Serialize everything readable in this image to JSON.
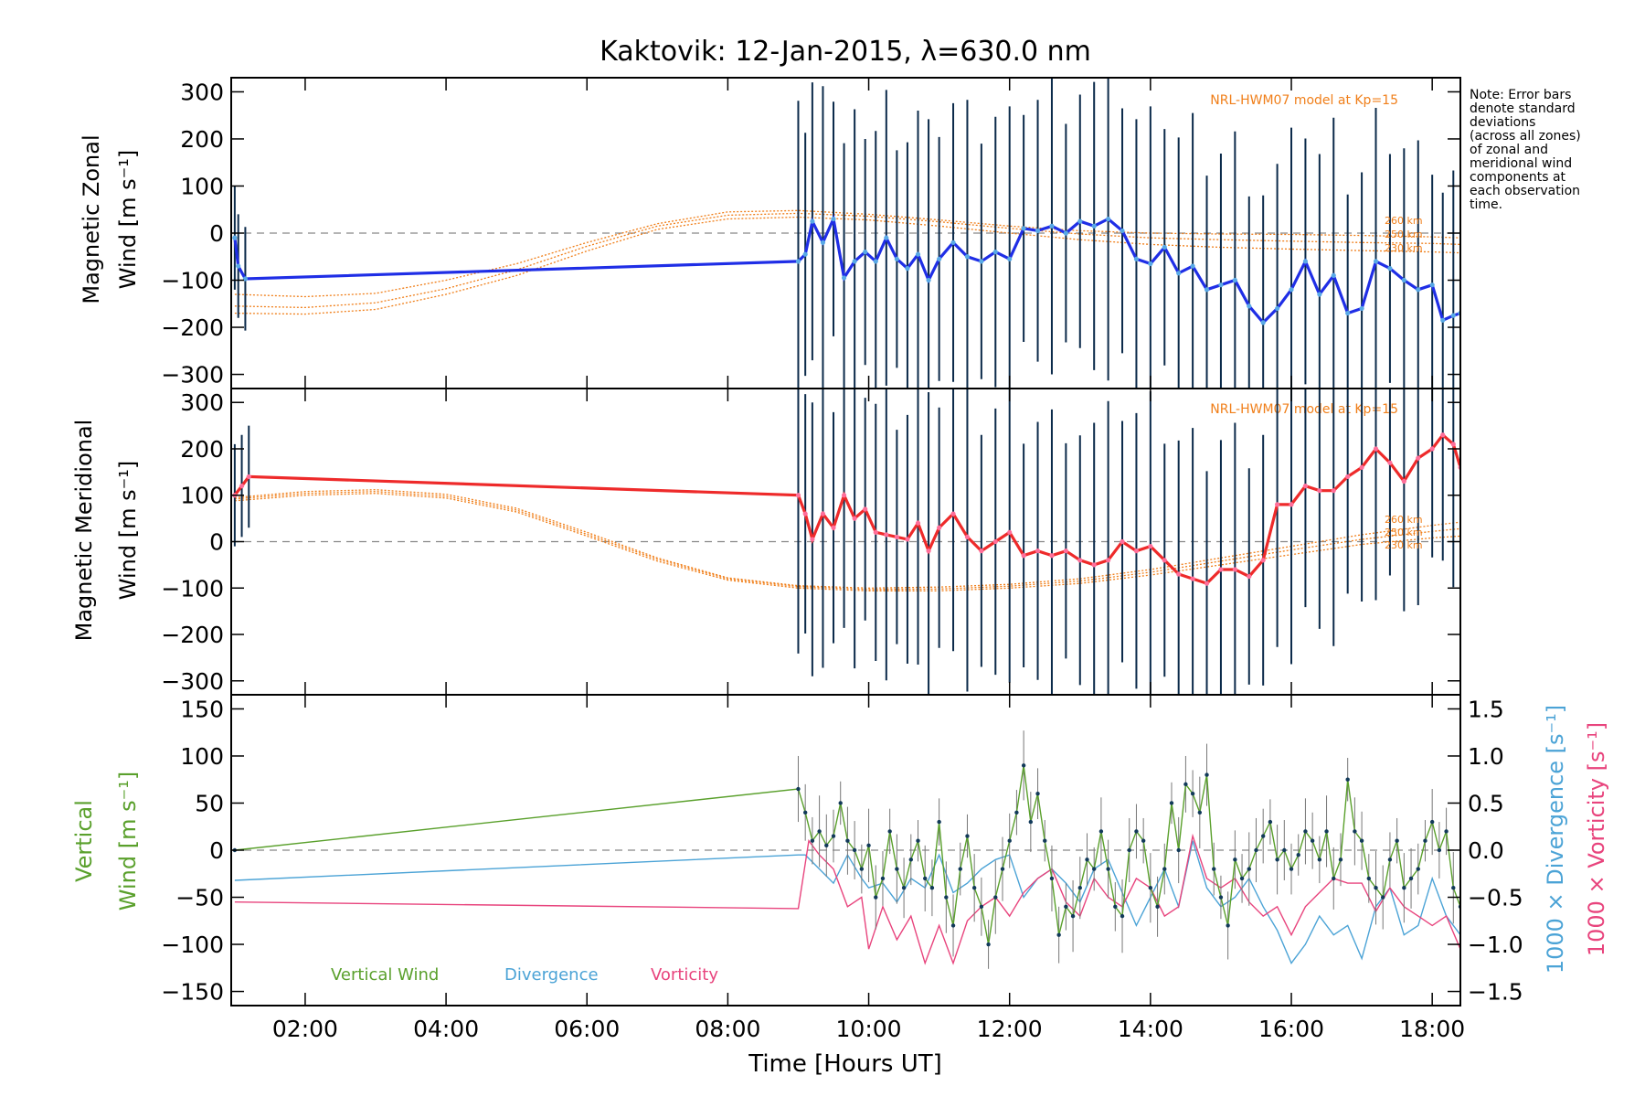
{
  "title": "Kaktovik: 12-Jan-2015, λ=630.0 nm",
  "note": [
    "Note: Error bars",
    "denote standard",
    "deviations",
    "(across all zones)",
    "of zonal and",
    "meridional wind",
    "components at",
    "each observation",
    "time."
  ],
  "model_label": "NRL-HWM07 model at Kp=15",
  "altitude_labels": [
    "260 km",
    "250 km",
    "230 km"
  ],
  "xlabel": "Time [Hours UT]",
  "x_ticks": [
    "02:00",
    "04:00",
    "06:00",
    "08:00",
    "10:00",
    "12:00",
    "14:00",
    "16:00",
    "18:00"
  ],
  "colors": {
    "zonal": "#1f2ee6",
    "meridional": "#ee2a2a",
    "vertical": "#5aa02c",
    "divergence": "#4ba3d6",
    "vorticity": "#e8447d",
    "model": "#f07f1a",
    "errorbar": "#0b2a4a"
  },
  "chart_data": [
    {
      "type": "line",
      "ylabel": "Magnetic Zonal Wind [m s⁻¹]",
      "ylabel_lines": [
        "Magnetic Zonal",
        "Wind [m s⁻¹]"
      ],
      "xlim": [
        0.95,
        18.4
      ],
      "ylim": [
        -330,
        330
      ],
      "y_ticks": [
        "300",
        "200",
        "100",
        "0",
        "−100",
        "−200",
        "−300"
      ],
      "series": [
        {
          "role": "observed",
          "x": [
            1.0,
            1.05,
            1.15,
            9.0,
            9.1,
            9.2,
            9.35,
            9.5,
            9.65,
            9.8,
            9.95,
            10.1,
            10.25,
            10.4,
            10.55,
            10.7,
            10.85,
            11.0,
            11.2,
            11.4,
            11.6,
            11.8,
            12.0,
            12.2,
            12.4,
            12.6,
            12.8,
            13.0,
            13.2,
            13.4,
            13.6,
            13.8,
            14.0,
            14.2,
            14.4,
            14.6,
            14.8,
            15.0,
            15.2,
            15.4,
            15.6,
            15.8,
            16.0,
            16.2,
            16.4,
            16.6,
            16.8,
            17.0,
            17.2,
            17.4,
            17.6,
            17.8,
            18.0,
            18.15,
            18.3,
            18.4
          ],
          "values": [
            -10,
            -70,
            -97,
            -60,
            -45,
            25,
            -20,
            30,
            -95,
            -60,
            -40,
            -60,
            -10,
            -55,
            -75,
            -45,
            -100,
            -55,
            -20,
            -50,
            -60,
            -40,
            -55,
            10,
            5,
            15,
            0,
            25,
            15,
            30,
            5,
            -55,
            -65,
            -30,
            -85,
            -70,
            -120,
            -110,
            -100,
            -155,
            -190,
            -160,
            -120,
            -60,
            -130,
            -90,
            -170,
            -160,
            -60,
            -75,
            -100,
            -120,
            -110,
            -185,
            -175,
            -170
          ]
        }
      ],
      "model_curves": [
        {
          "name": "260 km",
          "x": [
            1.0,
            2.0,
            3.0,
            4.0,
            5.0,
            6.0,
            7.0,
            8.0,
            9.0,
            10.0,
            11.0,
            12.0,
            13.0,
            14.0,
            15.0,
            16.0,
            17.0,
            18.0,
            18.4
          ],
          "values": [
            -130,
            -135,
            -128,
            -100,
            -65,
            -20,
            20,
            45,
            48,
            40,
            28,
            15,
            5,
            0,
            -2,
            -3,
            -5,
            -8,
            -10
          ]
        },
        {
          "name": "250 km",
          "x": [
            1.0,
            2.0,
            3.0,
            4.0,
            5.0,
            6.0,
            7.0,
            8.0,
            9.0,
            10.0,
            11.0,
            12.0,
            13.0,
            14.0,
            15.0,
            16.0,
            17.0,
            18.0,
            18.4
          ],
          "values": [
            -155,
            -158,
            -148,
            -118,
            -78,
            -28,
            15,
            38,
            42,
            36,
            24,
            10,
            -2,
            -10,
            -14,
            -17,
            -20,
            -22,
            -24
          ]
        },
        {
          "name": "230 km",
          "x": [
            1.0,
            2.0,
            3.0,
            4.0,
            5.0,
            6.0,
            7.0,
            8.0,
            9.0,
            10.0,
            11.0,
            12.0,
            13.0,
            14.0,
            15.0,
            16.0,
            17.0,
            18.0,
            18.4
          ],
          "values": [
            -170,
            -172,
            -162,
            -130,
            -90,
            -38,
            8,
            30,
            34,
            28,
            15,
            0,
            -14,
            -24,
            -30,
            -34,
            -37,
            -40,
            -42
          ]
        }
      ]
    },
    {
      "type": "line",
      "ylabel": "Magnetic Meridional Wind [m s⁻¹]",
      "ylabel_lines": [
        "Magnetic Meridional",
        "Wind [m s⁻¹]"
      ],
      "xlim": [
        0.95,
        18.4
      ],
      "ylim": [
        -330,
        330
      ],
      "y_ticks": [
        "300",
        "200",
        "100",
        "0",
        "−100",
        "−200",
        "−300"
      ],
      "series": [
        {
          "role": "observed",
          "x": [
            1.0,
            1.1,
            1.2,
            9.0,
            9.1,
            9.2,
            9.35,
            9.5,
            9.65,
            9.8,
            9.95,
            10.1,
            10.25,
            10.4,
            10.55,
            10.7,
            10.85,
            11.0,
            11.2,
            11.4,
            11.6,
            11.8,
            12.0,
            12.2,
            12.4,
            12.6,
            12.8,
            13.0,
            13.2,
            13.4,
            13.6,
            13.8,
            14.0,
            14.2,
            14.4,
            14.6,
            14.8,
            15.0,
            15.2,
            15.4,
            15.6,
            15.8,
            16.0,
            16.2,
            16.4,
            16.6,
            16.8,
            17.0,
            17.2,
            17.4,
            17.6,
            17.8,
            18.0,
            18.15,
            18.3,
            18.4
          ],
          "values": [
            100,
            120,
            140,
            100,
            60,
            5,
            60,
            30,
            100,
            50,
            70,
            20,
            15,
            10,
            5,
            40,
            -20,
            30,
            60,
            10,
            -20,
            0,
            20,
            -30,
            -20,
            -30,
            -20,
            -40,
            -50,
            -40,
            0,
            -20,
            -10,
            -40,
            -70,
            -80,
            -90,
            -60,
            -60,
            -75,
            -40,
            80,
            80,
            120,
            110,
            110,
            140,
            160,
            200,
            170,
            130,
            180,
            200,
            230,
            210,
            160
          ]
        }
      ],
      "model_curves": [
        {
          "name": "260 km",
          "x": [
            1.0,
            2.0,
            3.0,
            4.0,
            5.0,
            6.0,
            7.0,
            8.0,
            9.0,
            10.0,
            11.0,
            12.0,
            13.0,
            14.0,
            15.0,
            16.0,
            17.0,
            18.0,
            18.4
          ],
          "values": [
            95,
            108,
            112,
            102,
            72,
            20,
            -35,
            -78,
            -95,
            -100,
            -98,
            -92,
            -80,
            -60,
            -35,
            -10,
            15,
            35,
            42
          ]
        },
        {
          "name": "250 km",
          "x": [
            1.0,
            2.0,
            3.0,
            4.0,
            5.0,
            6.0,
            7.0,
            8.0,
            9.0,
            10.0,
            11.0,
            12.0,
            13.0,
            14.0,
            15.0,
            16.0,
            17.0,
            18.0,
            18.4
          ],
          "values": [
            92,
            104,
            108,
            98,
            68,
            16,
            -38,
            -80,
            -97,
            -103,
            -102,
            -96,
            -85,
            -66,
            -42,
            -18,
            5,
            22,
            28
          ]
        },
        {
          "name": "230 km",
          "x": [
            1.0,
            2.0,
            3.0,
            4.0,
            5.0,
            6.0,
            7.0,
            8.0,
            9.0,
            10.0,
            11.0,
            12.0,
            13.0,
            14.0,
            15.0,
            16.0,
            17.0,
            18.0,
            18.4
          ],
          "values": [
            88,
            100,
            104,
            94,
            64,
            12,
            -42,
            -83,
            -100,
            -106,
            -106,
            -100,
            -90,
            -72,
            -50,
            -28,
            -6,
            8,
            12
          ]
        }
      ]
    },
    {
      "type": "line",
      "ylabel": "Vertical Wind [m s⁻¹]",
      "ylabel_lines": [
        "Vertical",
        "Wind [m s⁻¹]"
      ],
      "right_axis_labels": [
        "1000 × Divergence [s⁻¹]",
        "1000 × Vorticity [s⁻¹]"
      ],
      "xlim": [
        0.95,
        18.4
      ],
      "ylim": [
        -165,
        165
      ],
      "y_ticks": [
        "150",
        "100",
        "50",
        "0",
        "−50",
        "−100",
        "−150"
      ],
      "y2lim": [
        -1.65,
        1.65
      ],
      "y2_ticks": [
        "1.5",
        "1.0",
        "0.5",
        "0.0",
        "−0.5",
        "−1.0",
        "−1.5"
      ],
      "legend": [
        "Vertical Wind",
        "Divergence",
        "Vorticity"
      ],
      "series": [
        {
          "name": "Vertical Wind",
          "x": [
            1.0,
            9.0,
            9.1,
            9.2,
            9.3,
            9.4,
            9.5,
            9.6,
            9.7,
            9.8,
            9.9,
            10.0,
            10.1,
            10.2,
            10.3,
            10.4,
            10.5,
            10.6,
            10.7,
            10.8,
            10.9,
            11.0,
            11.1,
            11.2,
            11.3,
            11.4,
            11.5,
            11.6,
            11.7,
            11.8,
            11.9,
            12.0,
            12.1,
            12.2,
            12.3,
            12.4,
            12.5,
            12.6,
            12.7,
            12.8,
            12.9,
            13.0,
            13.1,
            13.2,
            13.3,
            13.4,
            13.5,
            13.6,
            13.7,
            13.8,
            13.9,
            14.0,
            14.1,
            14.2,
            14.3,
            14.4,
            14.5,
            14.6,
            14.7,
            14.8,
            14.9,
            15.0,
            15.1,
            15.2,
            15.3,
            15.4,
            15.5,
            15.6,
            15.7,
            15.8,
            15.9,
            16.0,
            16.1,
            16.2,
            16.3,
            16.4,
            16.5,
            16.6,
            16.7,
            16.8,
            16.9,
            17.0,
            17.1,
            17.2,
            17.3,
            17.4,
            17.5,
            17.6,
            17.7,
            17.8,
            17.9,
            18.0,
            18.1,
            18.2,
            18.3,
            18.4
          ],
          "values": [
            0,
            65,
            40,
            10,
            20,
            5,
            15,
            50,
            10,
            0,
            -20,
            5,
            -50,
            -30,
            20,
            -20,
            -40,
            -10,
            10,
            -30,
            -40,
            30,
            -50,
            -80,
            -20,
            15,
            -40,
            -60,
            -100,
            -50,
            -20,
            10,
            40,
            90,
            30,
            60,
            10,
            -30,
            -90,
            -60,
            -70,
            -40,
            -10,
            -20,
            20,
            -20,
            -60,
            -70,
            0,
            20,
            10,
            -40,
            -60,
            -20,
            50,
            0,
            70,
            60,
            40,
            80,
            -20,
            -50,
            -80,
            -10,
            -30,
            -20,
            0,
            15,
            30,
            -10,
            0,
            -20,
            -5,
            20,
            10,
            -10,
            20,
            -30,
            -10,
            75,
            20,
            10,
            -30,
            -40,
            -50,
            -10,
            10,
            -40,
            -30,
            -20,
            10,
            30,
            0,
            20,
            -40,
            -60
          ]
        },
        {
          "name": "Divergence",
          "x": [
            1.0,
            9.0,
            9.1,
            9.3,
            9.5,
            9.7,
            9.9,
            10.0,
            10.2,
            10.4,
            10.6,
            10.8,
            11.0,
            11.2,
            11.4,
            11.6,
            11.8,
            12.0,
            12.2,
            12.4,
            12.6,
            12.8,
            13.0,
            13.2,
            13.4,
            13.6,
            13.8,
            14.0,
            14.2,
            14.4,
            14.6,
            14.8,
            15.0,
            15.2,
            15.4,
            15.6,
            15.8,
            16.0,
            16.2,
            16.4,
            16.6,
            16.8,
            17.0,
            17.2,
            17.4,
            17.6,
            17.8,
            18.0,
            18.2,
            18.4
          ],
          "values": [
            -0.32,
            -0.05,
            -0.05,
            -0.2,
            -0.35,
            -0.05,
            -0.3,
            -0.4,
            -0.35,
            -0.55,
            -0.3,
            -0.4,
            -0.05,
            -0.45,
            -0.35,
            -0.2,
            -0.1,
            -0.05,
            -0.5,
            -0.3,
            -0.2,
            -0.35,
            -0.55,
            -0.2,
            -0.1,
            -0.45,
            -0.8,
            -0.5,
            -0.2,
            -0.6,
            0.1,
            -0.4,
            -0.6,
            -0.5,
            -0.3,
            -0.6,
            -0.85,
            -1.2,
            -1.0,
            -0.7,
            -0.9,
            -0.8,
            -1.15,
            -0.6,
            -0.4,
            -0.9,
            -0.8,
            -0.3,
            -0.7,
            -0.9
          ]
        },
        {
          "name": "Vorticity",
          "x": [
            1.0,
            9.0,
            9.15,
            9.3,
            9.5,
            9.7,
            9.9,
            10.0,
            10.2,
            10.4,
            10.6,
            10.8,
            11.0,
            11.2,
            11.4,
            11.6,
            11.8,
            12.0,
            12.2,
            12.4,
            12.6,
            12.8,
            13.0,
            13.2,
            13.4,
            13.6,
            13.8,
            14.0,
            14.2,
            14.4,
            14.6,
            14.8,
            15.0,
            15.2,
            15.4,
            15.6,
            15.8,
            16.0,
            16.2,
            16.4,
            16.6,
            16.8,
            17.0,
            17.2,
            17.4,
            17.6,
            17.8,
            18.0,
            18.2,
            18.4
          ],
          "values": [
            -0.55,
            -0.62,
            0.1,
            -0.05,
            -0.2,
            -0.6,
            -0.5,
            -1.05,
            -0.6,
            -0.95,
            -0.7,
            -1.2,
            -0.8,
            -1.2,
            -0.75,
            -0.6,
            -0.5,
            -0.7,
            -0.45,
            -0.3,
            -0.2,
            -0.55,
            -0.7,
            -0.3,
            -0.5,
            -0.6,
            -0.3,
            -0.4,
            -0.7,
            -0.6,
            0.15,
            -0.3,
            -0.4,
            -0.3,
            -0.55,
            -0.7,
            -0.6,
            -0.9,
            -0.6,
            -0.45,
            -0.3,
            -0.35,
            -0.35,
            -0.65,
            -0.4,
            -0.6,
            -0.7,
            -0.8,
            -0.7,
            -1.05
          ]
        }
      ]
    }
  ]
}
